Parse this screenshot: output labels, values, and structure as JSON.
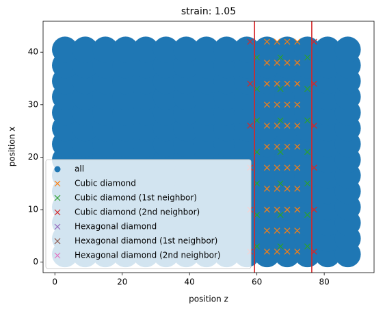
{
  "chart_data": {
    "type": "scatter",
    "title": "strain: 1.05",
    "xlabel": "position z",
    "ylabel": "position x",
    "xlim": [
      -3.5,
      94.8
    ],
    "ylim": [
      -2,
      45.9
    ],
    "xticks": [
      0,
      20,
      40,
      60,
      80
    ],
    "yticks": [
      0,
      10,
      20,
      30,
      40
    ],
    "legend": "lower left",
    "vlines": [
      {
        "x": 59.3,
        "color": "#d62728"
      },
      {
        "x": 76.3,
        "color": "#d62728"
      }
    ],
    "series": [
      {
        "name": "all",
        "color": "#1f77b4",
        "marker": "o",
        "x": [
          3,
          9,
          15,
          21,
          27,
          33,
          39,
          45,
          51,
          57,
          63,
          69,
          75,
          81,
          87,
          3,
          9,
          15,
          21,
          27,
          33,
          39,
          45,
          51,
          57,
          63,
          69,
          75,
          81,
          87,
          3,
          9,
          15,
          21,
          27,
          33,
          39,
          45,
          51,
          57,
          63,
          69,
          75,
          81,
          87,
          3,
          9,
          15,
          21,
          27,
          33,
          39,
          45,
          51,
          57,
          63,
          69,
          75,
          81,
          87,
          3,
          9,
          15,
          21,
          27,
          33,
          39,
          45,
          51,
          57,
          63,
          69,
          75,
          81,
          87,
          3,
          9,
          15,
          21,
          27,
          33,
          39,
          45,
          51,
          57,
          63,
          69,
          75,
          81,
          87,
          3,
          9,
          15,
          21,
          27,
          33,
          39,
          45,
          51,
          57,
          63,
          69,
          75,
          81,
          87,
          3,
          9,
          15,
          21,
          27,
          33,
          39,
          45,
          51,
          57,
          63,
          69,
          75,
          81,
          87,
          3,
          9,
          15,
          21,
          27,
          33,
          39,
          45,
          51,
          57,
          63,
          69,
          75,
          81,
          87,
          3,
          9,
          15,
          21,
          27,
          33,
          39,
          45,
          51,
          57,
          63,
          69,
          75,
          81,
          87,
          3,
          9,
          15,
          21,
          27,
          33,
          39,
          45,
          51,
          57,
          63,
          69,
          75,
          81,
          87,
          3,
          9,
          15,
          21,
          27,
          33,
          39,
          45,
          51,
          57,
          63,
          69,
          75,
          81,
          87,
          3,
          9,
          15,
          21,
          27,
          33,
          39,
          45,
          51,
          57,
          63,
          69,
          75,
          81,
          87,
          3,
          9,
          15,
          21,
          27,
          33,
          39,
          45,
          51,
          57,
          63,
          69,
          75,
          81,
          87
        ],
        "values": [
          1.5,
          1.5,
          1.5,
          1.5,
          1.5,
          1.5,
          1.5,
          1.5,
          1.5,
          1.5,
          1.5,
          1.5,
          1.5,
          1.5,
          1.5,
          4.5,
          4.5,
          4.5,
          4.5,
          4.5,
          4.5,
          4.5,
          4.5,
          4.5,
          4.5,
          4.5,
          4.5,
          4.5,
          4.5,
          4.5,
          7.5,
          7.5,
          7.5,
          7.5,
          7.5,
          7.5,
          7.5,
          7.5,
          7.5,
          7.5,
          7.5,
          7.5,
          7.5,
          7.5,
          7.5,
          10.5,
          10.5,
          10.5,
          10.5,
          10.5,
          10.5,
          10.5,
          10.5,
          10.5,
          10.5,
          10.5,
          10.5,
          10.5,
          10.5,
          10.5,
          13.5,
          13.5,
          13.5,
          13.5,
          13.5,
          13.5,
          13.5,
          13.5,
          13.5,
          13.5,
          13.5,
          13.5,
          13.5,
          13.5,
          13.5,
          16.5,
          16.5,
          16.5,
          16.5,
          16.5,
          16.5,
          16.5,
          16.5,
          16.5,
          16.5,
          16.5,
          16.5,
          16.5,
          16.5,
          16.5,
          19.5,
          19.5,
          19.5,
          19.5,
          19.5,
          19.5,
          19.5,
          19.5,
          19.5,
          19.5,
          19.5,
          19.5,
          19.5,
          19.5,
          19.5,
          22.5,
          22.5,
          22.5,
          22.5,
          22.5,
          22.5,
          22.5,
          22.5,
          22.5,
          22.5,
          22.5,
          22.5,
          22.5,
          22.5,
          22.5,
          25.5,
          25.5,
          25.5,
          25.5,
          25.5,
          25.5,
          25.5,
          25.5,
          25.5,
          25.5,
          25.5,
          25.5,
          25.5,
          25.5,
          25.5,
          28.5,
          28.5,
          28.5,
          28.5,
          28.5,
          28.5,
          28.5,
          28.5,
          28.5,
          28.5,
          28.5,
          28.5,
          28.5,
          28.5,
          28.5,
          31.5,
          31.5,
          31.5,
          31.5,
          31.5,
          31.5,
          31.5,
          31.5,
          31.5,
          31.5,
          31.5,
          31.5,
          31.5,
          31.5,
          31.5,
          34.5,
          34.5,
          34.5,
          34.5,
          34.5,
          34.5,
          34.5,
          34.5,
          34.5,
          34.5,
          34.5,
          34.5,
          34.5,
          34.5,
          34.5,
          37.5,
          37.5,
          37.5,
          37.5,
          37.5,
          37.5,
          37.5,
          37.5,
          37.5,
          37.5,
          37.5,
          37.5,
          37.5,
          37.5,
          37.5,
          40.5,
          40.5,
          40.5,
          40.5,
          40.5,
          40.5,
          40.5,
          40.5,
          40.5,
          40.5,
          40.5,
          40.5,
          40.5,
          40.5,
          40.5
        ]
      },
      {
        "name": "Cubic diamond",
        "color": "#ff7f0e",
        "marker": "x",
        "x": [
          63,
          66,
          69,
          72,
          63,
          66,
          69,
          72,
          63,
          66,
          69,
          72,
          63,
          66,
          69,
          72,
          63,
          66,
          69,
          72,
          63,
          66,
          69,
          72,
          63,
          66,
          69,
          72,
          63,
          66,
          69,
          72,
          63,
          66,
          69,
          72,
          63,
          66,
          69,
          72,
          63,
          66,
          69,
          72
        ],
        "values": [
          2,
          2,
          2,
          2,
          6,
          6,
          6,
          6,
          10,
          10,
          10,
          10,
          14,
          14,
          14,
          14,
          18,
          18,
          18,
          18,
          22,
          22,
          22,
          22,
          26,
          26,
          26,
          26,
          30,
          30,
          30,
          30,
          34,
          34,
          34,
          34,
          38,
          38,
          38,
          38,
          42,
          42,
          42,
          42
        ]
      },
      {
        "name": "Cubic diamond (1st neighbor)",
        "color": "#2ca02c",
        "marker": "x",
        "x": [
          60,
          67,
          75,
          60,
          67,
          75,
          60,
          67,
          75,
          60,
          67,
          75,
          60,
          67,
          75,
          60,
          67,
          75,
          60,
          67,
          75
        ],
        "values": [
          3,
          3,
          3,
          9,
          9,
          9,
          15,
          15,
          15,
          21,
          21,
          21,
          27,
          27,
          27,
          33,
          33,
          33,
          39,
          39,
          39
        ]
      },
      {
        "name": "Cubic diamond (2nd neighbor)",
        "color": "#d62728",
        "marker": "x",
        "x": [
          58,
          77,
          58,
          77,
          58,
          77,
          58,
          77,
          58,
          77,
          58,
          77
        ],
        "values": [
          2,
          2,
          10,
          10,
          18,
          18,
          26,
          26,
          34,
          34,
          42,
          42
        ]
      },
      {
        "name": "Hexagonal diamond",
        "color": "#9467bd",
        "marker": "x",
        "x": [],
        "values": []
      },
      {
        "name": "Hexagonal diamond (1st neighbor)",
        "color": "#8c564b",
        "marker": "x",
        "x": [],
        "values": []
      },
      {
        "name": "Hexagonal diamond (2nd neighbor)",
        "color": "#e377c2",
        "marker": "x",
        "x": [],
        "values": []
      }
    ]
  }
}
